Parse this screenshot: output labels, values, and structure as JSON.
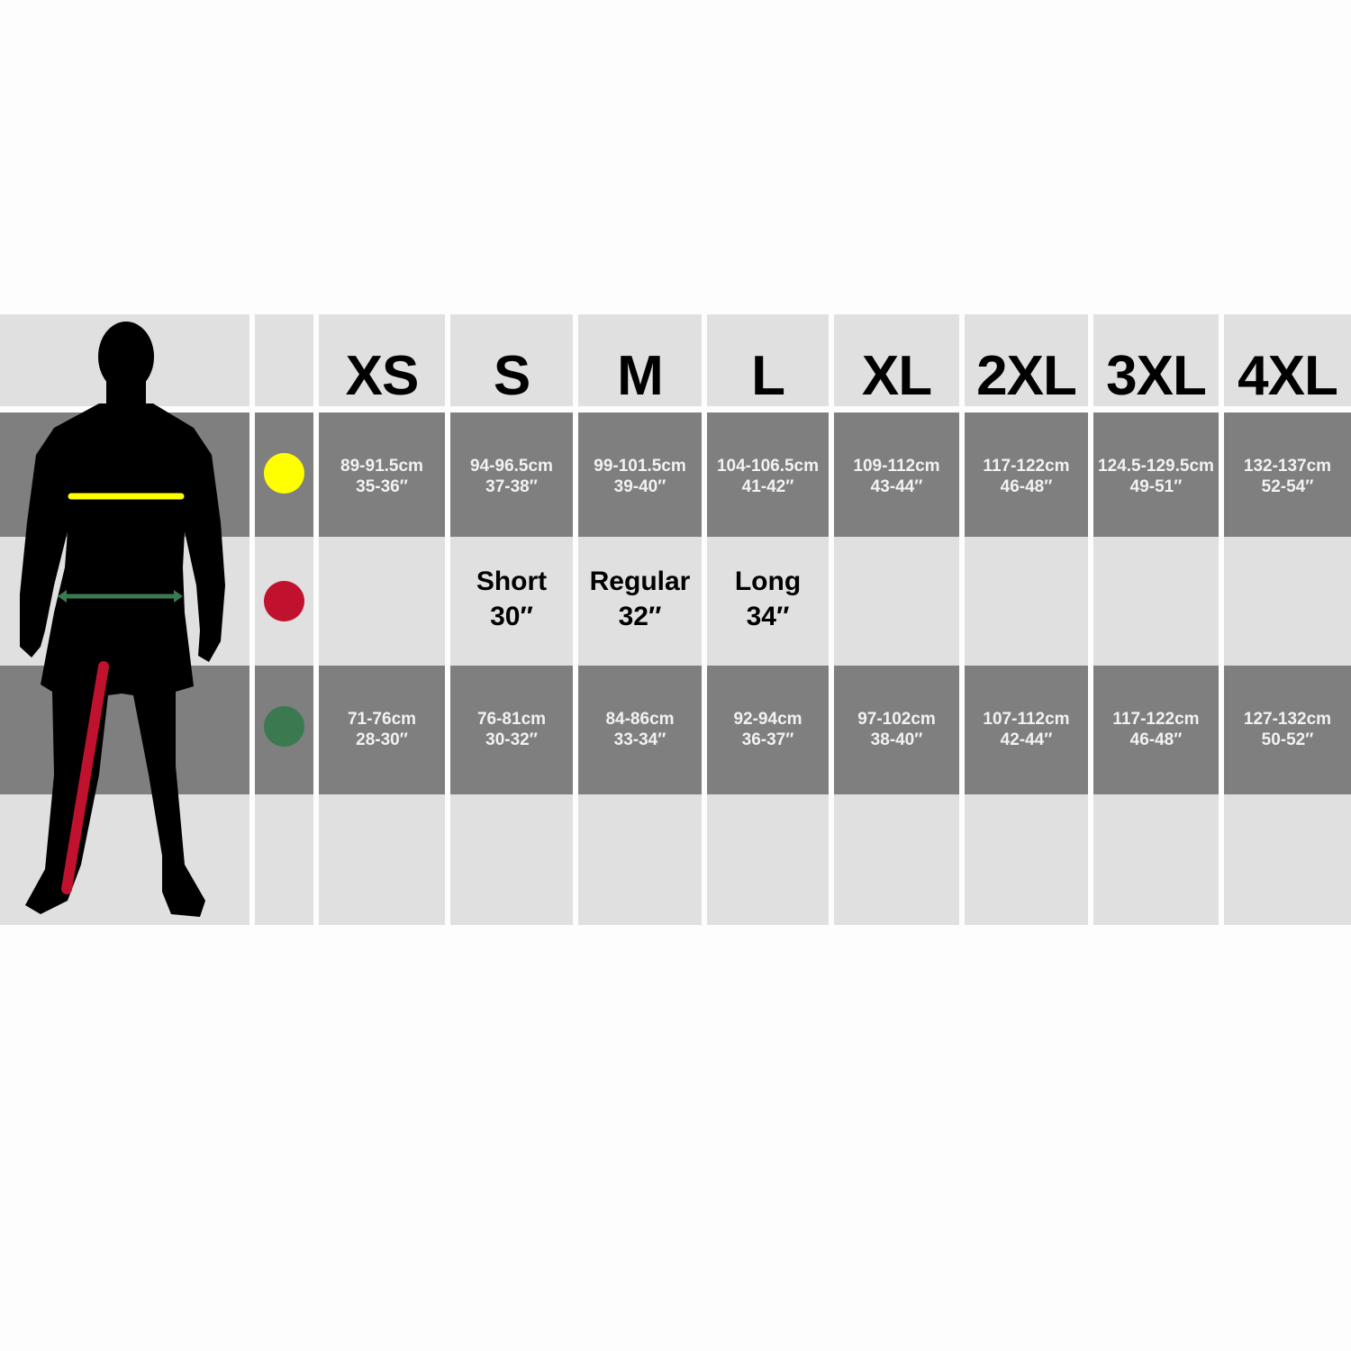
{
  "sizes": [
    "XS",
    "S",
    "M",
    "L",
    "XL",
    "2XL",
    "3XL",
    "4XL"
  ],
  "legend": {
    "chest_color": "#ffff00",
    "leg_color": "#c0122f",
    "waist_color": "#3b7a50"
  },
  "figure": {
    "icon": "male-silhouette-icon",
    "silhouette_color": "#000000"
  },
  "chest": [
    {
      "cm": "89-91.5cm",
      "in": "35-36″"
    },
    {
      "cm": "94-96.5cm",
      "in": "37-38″"
    },
    {
      "cm": "99-101.5cm",
      "in": "39-40″"
    },
    {
      "cm": "104-106.5cm",
      "in": "41-42″"
    },
    {
      "cm": "109-112cm",
      "in": "43-44″"
    },
    {
      "cm": "117-122cm",
      "in": "46-48″"
    },
    {
      "cm": "124.5-129.5cm",
      "in": "49-51″"
    },
    {
      "cm": "132-137cm",
      "in": "52-54″"
    }
  ],
  "leg": [
    {
      "name": "",
      "length": ""
    },
    {
      "name": "Short",
      "length": "30″"
    },
    {
      "name": "Regular",
      "length": "32″"
    },
    {
      "name": "Long",
      "length": "34″"
    },
    {
      "name": "",
      "length": ""
    },
    {
      "name": "",
      "length": ""
    },
    {
      "name": "",
      "length": ""
    },
    {
      "name": "",
      "length": ""
    }
  ],
  "waist": [
    {
      "cm": "71-76cm",
      "in": "28-30″"
    },
    {
      "cm": "76-81cm",
      "in": "30-32″"
    },
    {
      "cm": "84-86cm",
      "in": "33-34″"
    },
    {
      "cm": "92-94cm",
      "in": "36-37″"
    },
    {
      "cm": "97-102cm",
      "in": "38-40″"
    },
    {
      "cm": "107-112cm",
      "in": "42-44″"
    },
    {
      "cm": "117-122cm",
      "in": "46-48″"
    },
    {
      "cm": "127-132cm",
      "in": "50-52″"
    }
  ]
}
